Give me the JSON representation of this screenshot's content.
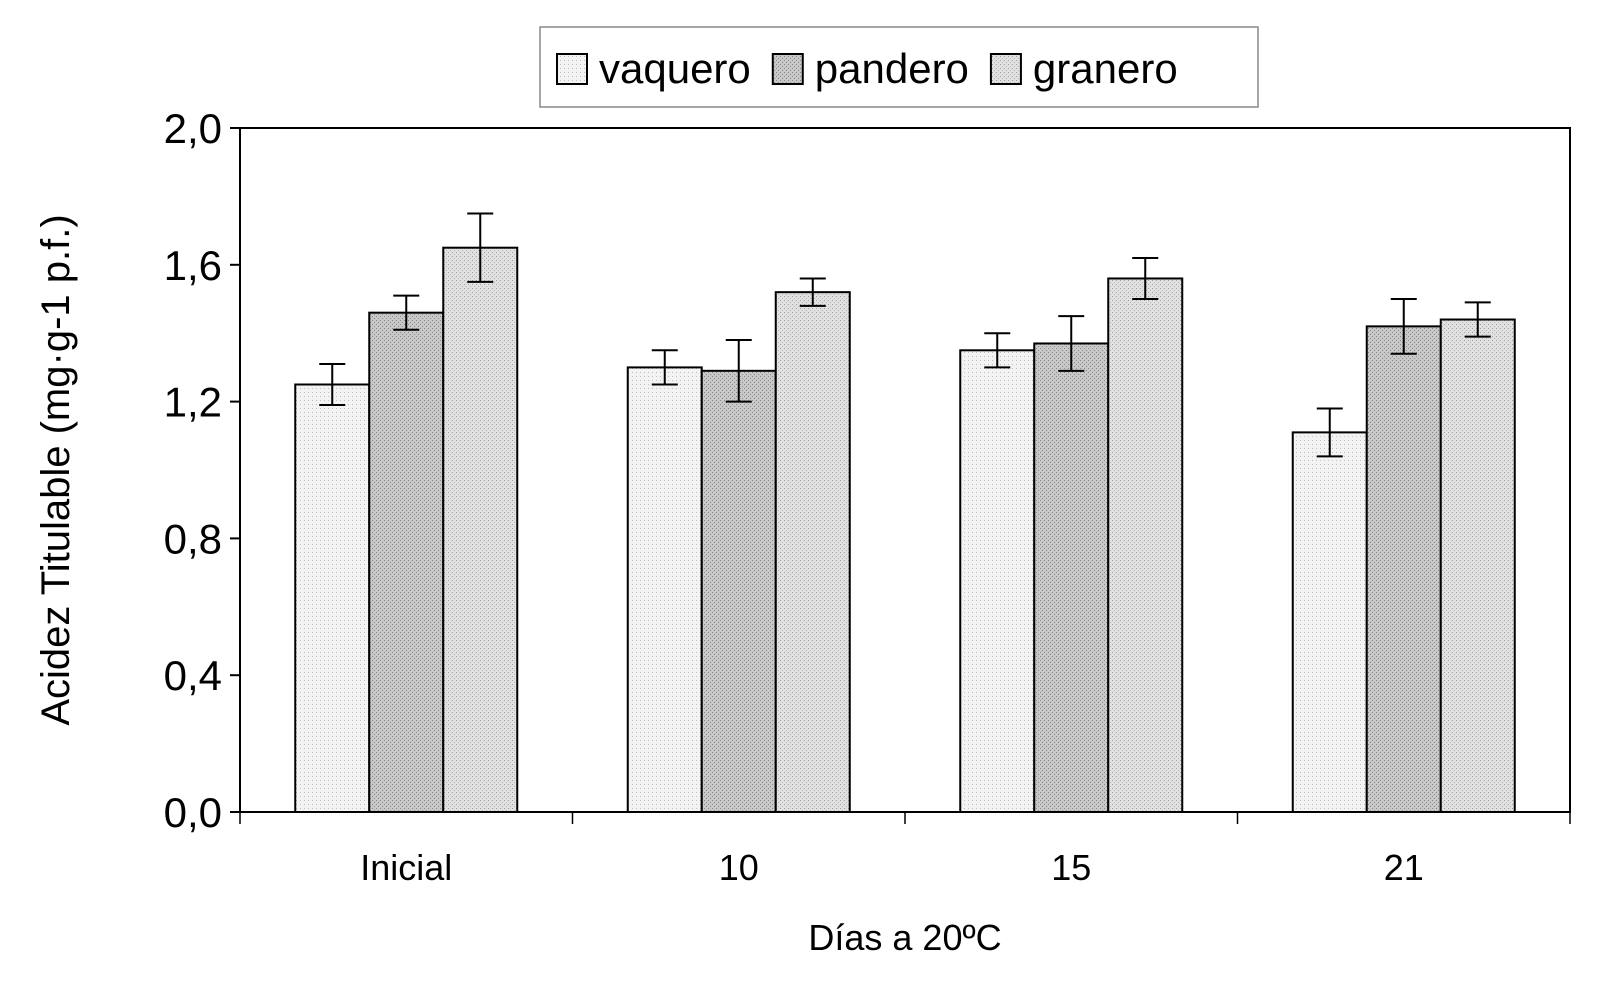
{
  "chart_data": {
    "type": "bar",
    "title": "",
    "xlabel": "Días a 20ºC",
    "ylabel": "Acidez Titulable (mg·g-1 p.f.)",
    "categories": [
      "Inicial",
      "10",
      "15",
      "21"
    ],
    "y_ticks": [
      "0,0",
      "0,4",
      "0,8",
      "1,2",
      "1,6",
      "2,0"
    ],
    "ylim": [
      0,
      2.0
    ],
    "grid": false,
    "legend_position": "top-center",
    "series": [
      {
        "name": "vaquero",
        "values": [
          1.25,
          1.3,
          1.35,
          1.11
        ],
        "errors": [
          0.06,
          0.05,
          0.05,
          0.07
        ],
        "fill": "#f2f2f2"
      },
      {
        "name": "pandero",
        "values": [
          1.46,
          1.29,
          1.37,
          1.42
        ],
        "errors": [
          0.05,
          0.09,
          0.08,
          0.08
        ],
        "fill": "#cfcfcf"
      },
      {
        "name": "granero",
        "values": [
          1.65,
          1.52,
          1.56,
          1.44
        ],
        "errors": [
          0.1,
          0.04,
          0.06,
          0.05
        ],
        "fill": "#e3e3e3"
      }
    ]
  }
}
